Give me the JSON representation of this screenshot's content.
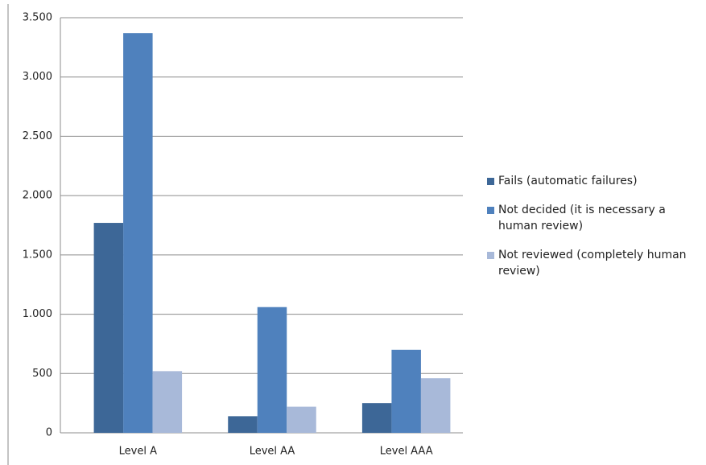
{
  "chart_data": {
    "type": "bar",
    "categories": [
      "Level A",
      "Level AA",
      "Level AAA"
    ],
    "series": [
      {
        "name": "Fails (automatic failures)",
        "color": "#3d6797",
        "values": [
          1770,
          140,
          250
        ]
      },
      {
        "name": "Not decided (it is necessary a human review)",
        "color": "#4f81bd",
        "values": [
          3370,
          1060,
          700
        ]
      },
      {
        "name": "Not reviewed (completely human review)",
        "color": "#a8b9d9",
        "values": [
          520,
          220,
          460
        ]
      }
    ],
    "ylim": [
      0,
      3500
    ],
    "yticks": [
      0,
      500,
      {
        "value": 1000,
        "label": "1.000"
      },
      {
        "value": 1500,
        "label": "1.500"
      },
      {
        "value": 2000,
        "label": "2.000"
      },
      {
        "value": 2500,
        "label": "2.500"
      },
      {
        "value": 3000,
        "label": "3.000"
      },
      {
        "value": 3500,
        "label": "3.500"
      }
    ],
    "grid": true,
    "legend": "right"
  }
}
